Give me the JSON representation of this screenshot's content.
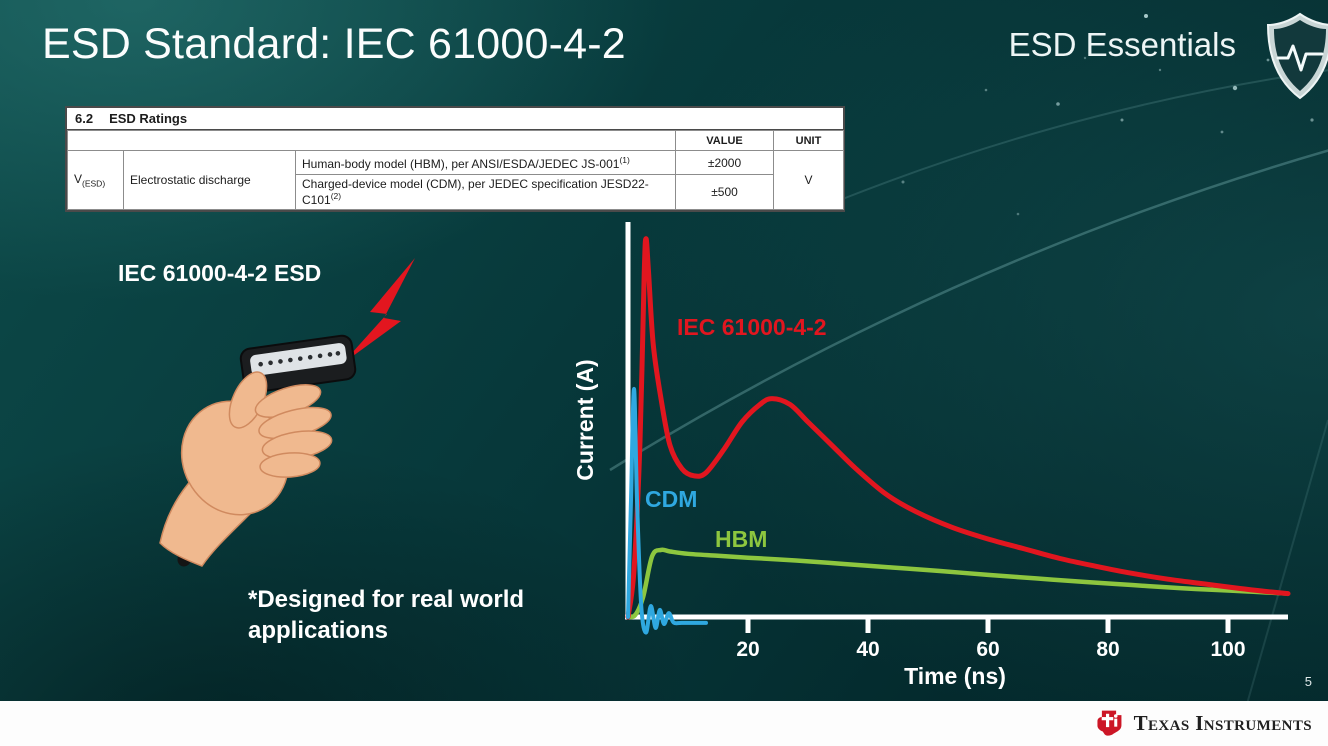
{
  "slide": {
    "title": "ESD Standard: IEC 61000-4-2",
    "series_brand": "ESD Essentials",
    "page_number": "5",
    "footer_brand": "Texas Instruments"
  },
  "ratings_table": {
    "section": "6.2",
    "section_title": "ESD Ratings",
    "col_value": "VALUE",
    "col_unit": "UNIT",
    "symbol": "V",
    "symbol_sub": "(ESD)",
    "parameter": "Electrostatic discharge",
    "rows": [
      {
        "desc": "Human-body model (HBM), per ANSI/ESDA/JEDEC JS-001",
        "sup": "(1)",
        "value": "±2000"
      },
      {
        "desc": "Charged-device model (CDM), per JEDEC specification JESD22-C101",
        "sup": "(2)",
        "value": "±500"
      }
    ],
    "unit": "V"
  },
  "left": {
    "caption": "IEC 61000-4-2 ESD",
    "note": "*Designed for real world applications"
  },
  "chart_data": {
    "type": "line",
    "title": "",
    "xlabel": "Time (ns)",
    "ylabel": "Current (A)",
    "xlim": [
      0,
      110
    ],
    "ylim": [
      -0.5,
      10
    ],
    "x_ticks": [
      20,
      40,
      60,
      80,
      100
    ],
    "grid": false,
    "legend": "inline-labels",
    "series": [
      {
        "name": "IEC 61000-4-2",
        "color": "#e1161f",
        "points": [
          [
            0,
            0
          ],
          [
            1,
            1.2
          ],
          [
            2,
            4.5
          ],
          [
            2.7,
            8.8
          ],
          [
            3,
            9.7
          ],
          [
            3.4,
            8.9
          ],
          [
            4.2,
            7.0
          ],
          [
            5.5,
            5.6
          ],
          [
            7,
            4.4
          ],
          [
            9,
            3.8
          ],
          [
            11,
            3.62
          ],
          [
            13,
            3.7
          ],
          [
            16,
            4.3
          ],
          [
            19,
            5.0
          ],
          [
            22,
            5.45
          ],
          [
            24,
            5.6
          ],
          [
            27,
            5.45
          ],
          [
            30,
            5.0
          ],
          [
            34,
            4.4
          ],
          [
            38,
            3.8
          ],
          [
            43,
            3.15
          ],
          [
            48,
            2.7
          ],
          [
            54,
            2.3
          ],
          [
            60,
            2.0
          ],
          [
            66,
            1.75
          ],
          [
            72,
            1.5
          ],
          [
            78,
            1.3
          ],
          [
            84,
            1.12
          ],
          [
            90,
            0.97
          ],
          [
            96,
            0.85
          ],
          [
            102,
            0.73
          ],
          [
            106,
            0.66
          ],
          [
            110,
            0.6
          ]
        ]
      },
      {
        "name": "CDM",
        "color": "#2fa8e0",
        "points": [
          [
            0,
            0
          ],
          [
            0.5,
            3.0
          ],
          [
            1,
            5.85
          ],
          [
            1.5,
            3.0
          ],
          [
            2.2,
            0.3
          ],
          [
            3,
            -0.4
          ],
          [
            3.8,
            0.28
          ],
          [
            4.6,
            -0.28
          ],
          [
            5.3,
            0.18
          ],
          [
            6,
            -0.18
          ],
          [
            6.8,
            0.1
          ],
          [
            7.6,
            -0.14
          ],
          [
            9,
            -0.15
          ],
          [
            13,
            -0.15
          ]
        ]
      },
      {
        "name": "HBM",
        "color": "#8dc63f",
        "points": [
          [
            0,
            0
          ],
          [
            1.2,
            0.05
          ],
          [
            2.5,
            0.5
          ],
          [
            4,
            1.55
          ],
          [
            5.5,
            1.72
          ],
          [
            7,
            1.68
          ],
          [
            10,
            1.62
          ],
          [
            15,
            1.57
          ],
          [
            20,
            1.52
          ],
          [
            28,
            1.45
          ],
          [
            36,
            1.36
          ],
          [
            44,
            1.27
          ],
          [
            52,
            1.18
          ],
          [
            60,
            1.08
          ],
          [
            68,
            0.99
          ],
          [
            76,
            0.9
          ],
          [
            84,
            0.82
          ],
          [
            92,
            0.74
          ],
          [
            100,
            0.68
          ],
          [
            110,
            0.6
          ]
        ]
      }
    ]
  }
}
